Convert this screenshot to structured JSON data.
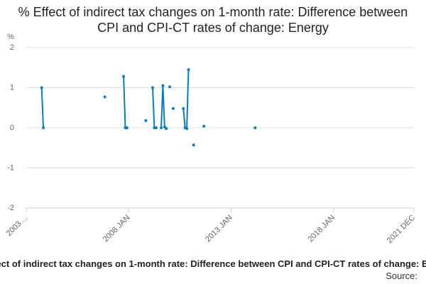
{
  "chart_data": {
    "type": "line",
    "title": "% Effect of indirect tax changes on 1-month rate: Difference between CPI and CPI-CT rates of change: Energy",
    "y_label": "%",
    "source": "Source:",
    "x": [
      "2003-10",
      "2003-11",
      "2004-01",
      "2006-11",
      "2007-01",
      "2007-10",
      "2007-11",
      "2007-12",
      "2008-06",
      "2008-11",
      "2009-01",
      "2009-03",
      "2009-04",
      "2009-05",
      "2009-06",
      "2009-08",
      "2009-09",
      "2009-10",
      "2009-11",
      "2009-12",
      "2010-01",
      "2010-02",
      "2010-03",
      "2010-04",
      "2010-09",
      "2010-10",
      "2010-11",
      "2010-12",
      "2011-01",
      "2011-03",
      "2011-04",
      "2011-09",
      "2011-10",
      "2014-03"
    ],
    "series": [
      {
        "color": "#0f7bb5",
        "values": [
          1.0,
          0,
          null,
          0.77,
          null,
          1.28,
          0,
          0,
          null,
          0.18,
          null,
          1.0,
          0,
          0,
          null,
          0,
          1.05,
          0.02,
          -0.02,
          null,
          1.02,
          null,
          0.48,
          null,
          0.48,
          0,
          -0.02,
          1.45,
          null,
          -0.43,
          null,
          0.04,
          null,
          0
        ]
      }
    ],
    "xlim": [
      "2003-01",
      "2021-12"
    ],
    "xticks": [
      {
        "value": "2003-01",
        "label": "2003 ..."
      },
      {
        "value": "2008-01",
        "label": "2008 JAN"
      },
      {
        "value": "2013-01",
        "label": "2013 JAN"
      },
      {
        "value": "2018-01",
        "label": "2018 JAN"
      },
      {
        "value": "2021-12",
        "label": "2021 DEC"
      }
    ],
    "ylim": [
      -2,
      2
    ],
    "yticks": [
      -2,
      -1,
      0,
      1,
      2
    ],
    "grid": true
  }
}
